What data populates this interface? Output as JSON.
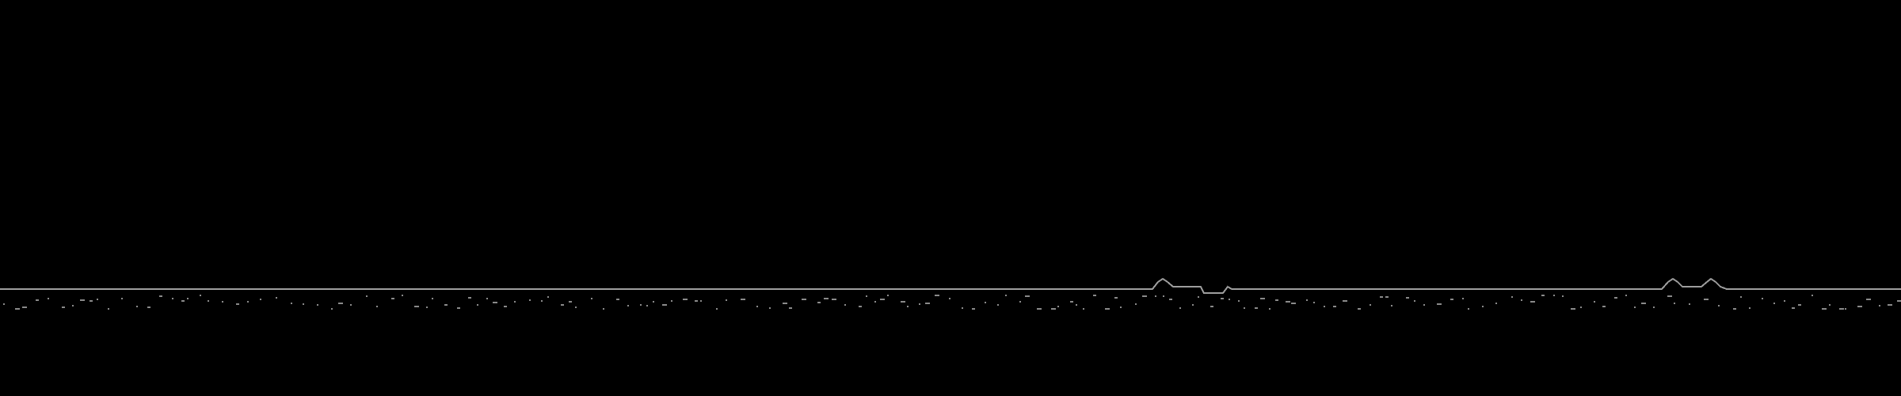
{
  "game": {
    "background_color": "#000000",
    "ground_color": "#9e9e9e",
    "speckle_color": "#8a8a8a",
    "ground_features": [
      "flat",
      "bump",
      "dip",
      "bump",
      "bump"
    ]
  }
}
